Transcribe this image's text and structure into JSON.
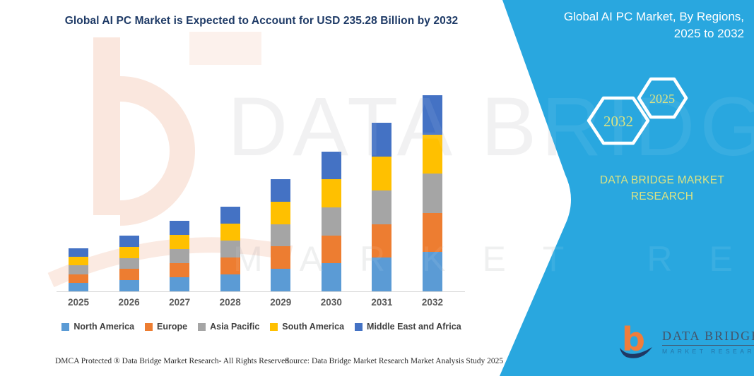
{
  "title": "Global AI PC Market is Expected to Account for USD 235.28 Billion by 2032",
  "side_panel": {
    "panel_color": "#29A7DF",
    "accent_text_color": "#DCE383",
    "heading_line1": "Global AI PC Market, By Regions,",
    "heading_line2": "2025 to 2032",
    "hexagon_back_label": "2032",
    "hexagon_front_label": "2025",
    "brand_caption": "DATA BRIDGE MARKET RESEARCH"
  },
  "chart_data": {
    "type": "bar",
    "stacked": true,
    "title": "Global AI PC Market is Expected to Account for USD 235.28 Billion by 2032",
    "unit": "USD Billion",
    "categories": [
      "2025",
      "2026",
      "2027",
      "2028",
      "2029",
      "2030",
      "2031",
      "2032"
    ],
    "series": [
      {
        "name": "North America",
        "color": "#5B9BD5",
        "values": [
          10.3,
          13.4,
          16.9,
          20.3,
          26.9,
          33.6,
          40.4,
          47.06
        ]
      },
      {
        "name": "Europe",
        "color": "#ED7D31",
        "values": [
          10.3,
          13.4,
          16.9,
          20.3,
          26.9,
          33.6,
          40.4,
          47.06
        ]
      },
      {
        "name": "Asia Pacific",
        "color": "#A5A5A5",
        "values": [
          10.3,
          13.4,
          16.9,
          20.3,
          26.9,
          33.6,
          40.4,
          47.06
        ]
      },
      {
        "name": "South America",
        "color": "#FFC000",
        "values": [
          10.3,
          13.3,
          16.9,
          20.3,
          26.9,
          33.5,
          40.5,
          47.06
        ]
      },
      {
        "name": "Middle East and Africa",
        "color": "#4472C4",
        "values": [
          10.4,
          13.4,
          17.0,
          20.3,
          26.8,
          33.5,
          40.5,
          47.04
        ]
      }
    ],
    "totals": [
      51.6,
      66.9,
      84.6,
      101.5,
      134.4,
      167.8,
      202.2,
      235.28
    ],
    "ylim": [
      0,
      250
    ],
    "gridlines": false,
    "y_axis_visible": false,
    "legend_position": "bottom"
  },
  "footer": {
    "left": "DMCA Protected ® Data Bridge Market Research-  All Rights Reserved.",
    "right": "Source: Data Bridge Market Research  Market Analysis Study 2025"
  },
  "brand_logo": {
    "title": "DATA BRIDGE",
    "subtitle": "MARKET RESEARCH"
  },
  "watermark": {
    "line1": "DATA BRIDGE",
    "line2": "MARKET RESEARCH"
  }
}
